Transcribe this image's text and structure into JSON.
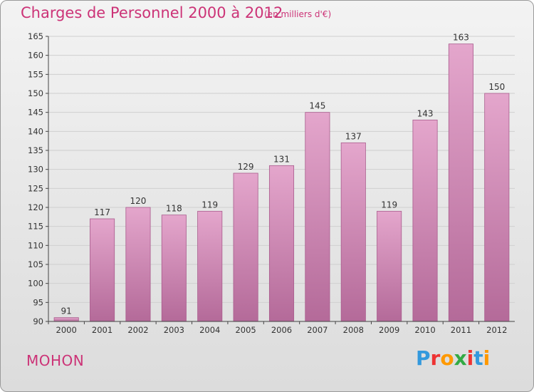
{
  "header": {
    "title": "Charges de Personnel 2000 à 2012",
    "subtitle": "(en milliers d'€)"
  },
  "footer": {
    "commune": "MOHON",
    "logo_text": "Proxiti",
    "logo_colors": [
      "#3399dd",
      "#ee3333",
      "#ff9900",
      "#33aa44",
      "#ee3333",
      "#3399dd",
      "#ff9900"
    ]
  },
  "colors": {
    "bar_top": "#e4a6cc",
    "bar_bottom": "#b46a99",
    "bar_edge": "#a95c8d",
    "grid": "#cfcfcf",
    "axis": "#444444"
  },
  "chart_data": {
    "type": "bar",
    "categories": [
      "2000",
      "2001",
      "2002",
      "2003",
      "2004",
      "2005",
      "2006",
      "2007",
      "2008",
      "2009",
      "2010",
      "2011",
      "2012"
    ],
    "values": [
      91,
      117,
      120,
      118,
      119,
      129,
      131,
      145,
      137,
      119,
      143,
      163,
      150
    ],
    "title": "Charges de Personnel 2000 à 2012",
    "subtitle": "(en milliers d'€)",
    "ylim": [
      90,
      165
    ],
    "ytick_step": 5,
    "grid": true
  }
}
